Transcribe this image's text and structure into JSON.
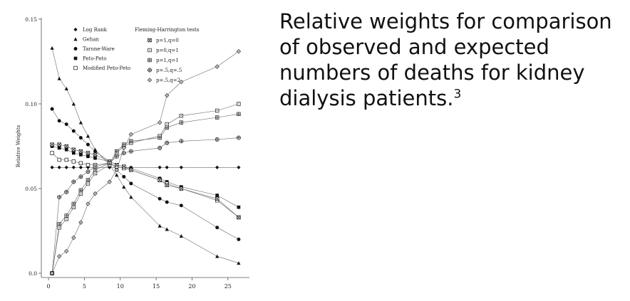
{
  "slide": {
    "title": "Relative weights for comparison of observed and expected numbers of deaths for kidney dialysis patients.",
    "title_sup": "3"
  },
  "chart_data": {
    "type": "line",
    "title": "",
    "xlabel": "",
    "ylabel": "Relative Weights",
    "xlim": [
      -1,
      28
    ],
    "ylim": [
      0,
      0.15
    ],
    "xticks": [
      0,
      5,
      10,
      15,
      20,
      25
    ],
    "yticks": [
      0.0,
      0.05,
      0.1,
      0.15
    ],
    "ytick_labels": [
      "0.0",
      "0.05",
      "0.10",
      "0.15"
    ],
    "legend_header_right": "Fleming-Harrington tests",
    "x": [
      0.5,
      1.5,
      2.5,
      3.5,
      4.5,
      5.5,
      6.5,
      8.5,
      9.5,
      10.5,
      11.5,
      15.5,
      16.5,
      18.5,
      23.5,
      26.5
    ],
    "series": [
      {
        "name": "Log Rank",
        "marker": "diamond-filled",
        "values": [
          0.0625,
          0.0625,
          0.0625,
          0.0625,
          0.0625,
          0.0625,
          0.0625,
          0.0625,
          0.0625,
          0.0625,
          0.0625,
          0.0625,
          0.0625,
          0.0625,
          0.0625,
          0.0625
        ]
      },
      {
        "name": "Gehan",
        "marker": "triangle-filled",
        "values": [
          0.133,
          0.115,
          0.109,
          0.1,
          0.089,
          0.081,
          0.073,
          0.064,
          0.058,
          0.051,
          0.045,
          0.028,
          0.026,
          0.022,
          0.01,
          0.006
        ]
      },
      {
        "name": "Tarone-Ware",
        "marker": "circle-filled",
        "values": [
          0.097,
          0.09,
          0.088,
          0.084,
          0.08,
          0.076,
          0.072,
          0.066,
          0.061,
          0.057,
          0.053,
          0.044,
          0.042,
          0.04,
          0.027,
          0.02
        ]
      },
      {
        "name": "Peto-Peto",
        "marker": "square-filled",
        "values": [
          0.075,
          0.074,
          0.073,
          0.071,
          0.07,
          0.069,
          0.068,
          0.066,
          0.064,
          0.063,
          0.062,
          0.056,
          0.054,
          0.051,
          0.046,
          0.039
        ]
      },
      {
        "name": "Modified Peto-Peto",
        "marker": "square-open",
        "values": [
          0.071,
          0.067,
          0.067,
          0.066,
          0.065,
          0.064,
          0.064,
          0.065,
          0.063,
          0.062,
          0.061,
          0.055,
          0.053,
          0.05,
          0.043,
          0.033
        ]
      },
      {
        "name": "p=1,q=0",
        "marker": "square-x",
        "values": [
          0.076,
          0.076,
          0.075,
          0.073,
          0.072,
          0.071,
          0.07,
          0.066,
          0.064,
          0.063,
          0.061,
          0.055,
          0.052,
          0.05,
          0.044,
          0.033
        ]
      },
      {
        "name": "p=0,q=1",
        "marker": "square-dot",
        "values": [
          0.0,
          0.027,
          0.032,
          0.039,
          0.047,
          0.053,
          0.059,
          0.064,
          0.071,
          0.075,
          0.077,
          0.081,
          0.088,
          0.093,
          0.096,
          0.1
        ]
      },
      {
        "name": "p=1,q=1",
        "marker": "square-cross",
        "values": [
          0.0,
          0.029,
          0.034,
          0.041,
          0.049,
          0.055,
          0.061,
          0.065,
          0.072,
          0.076,
          0.078,
          0.08,
          0.086,
          0.089,
          0.092,
          0.094
        ]
      },
      {
        "name": "p=.5,q=.5",
        "marker": "circle-cross",
        "values": [
          0.0,
          0.045,
          0.048,
          0.054,
          0.057,
          0.06,
          0.063,
          0.065,
          0.069,
          0.071,
          0.072,
          0.074,
          0.077,
          0.078,
          0.079,
          0.08
        ]
      },
      {
        "name": "p=.5,q=2",
        "marker": "diamond-open",
        "values": [
          0.0,
          0.01,
          0.013,
          0.021,
          0.03,
          0.041,
          0.047,
          0.054,
          0.061,
          0.074,
          0.082,
          0.089,
          0.105,
          0.113,
          0.122,
          0.131
        ]
      }
    ],
    "reference_lines": [
      0.0625
    ],
    "grid": false,
    "legend_position": "top-left"
  }
}
